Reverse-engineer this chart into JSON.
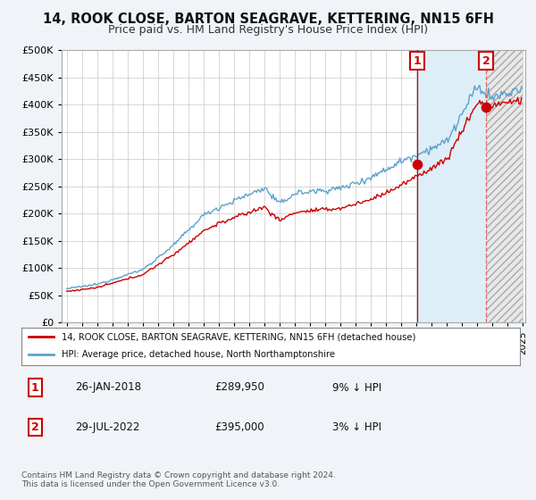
{
  "title": "14, ROOK CLOSE, BARTON SEAGRAVE, KETTERING, NN15 6FH",
  "subtitle": "Price paid vs. HM Land Registry's House Price Index (HPI)",
  "ylim": [
    0,
    500000
  ],
  "yticks": [
    0,
    50000,
    100000,
    150000,
    200000,
    250000,
    300000,
    350000,
    400000,
    450000,
    500000
  ],
  "ytick_labels": [
    "£0",
    "£50K",
    "£100K",
    "£150K",
    "£200K",
    "£250K",
    "£300K",
    "£350K",
    "£400K",
    "£450K",
    "£500K"
  ],
  "hpi_color": "#5ba3c9",
  "price_color": "#cc0000",
  "grid_color": "#c8c8c8",
  "bg_color": "#f0f4f8",
  "plot_bg": "#ffffff",
  "shade_color": "#ddeef8",
  "hatch_color": "#bbbbbb",
  "transaction1_date": "2018-01-26",
  "transaction1_price": 289950,
  "transaction2_date": "2022-07-29",
  "transaction2_price": 395000,
  "transaction1_pct": "9% ↓ HPI",
  "transaction2_pct": "3% ↓ HPI",
  "legend_line1": "14, ROOK CLOSE, BARTON SEAGRAVE, KETTERING, NN15 6FH (detached house)",
  "legend_line2": "HPI: Average price, detached house, North Northamptonshire",
  "footer": "Contains HM Land Registry data © Crown copyright and database right 2024.\nThis data is licensed under the Open Government Licence v3.0.",
  "title_fontsize": 10.5,
  "subtitle_fontsize": 9
}
